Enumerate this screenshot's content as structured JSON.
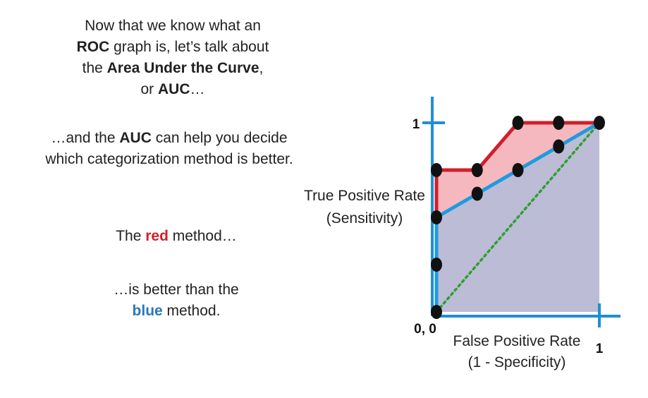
{
  "narration": {
    "para1_line1": "Now that we know what an",
    "para1_line2_bold": "ROC",
    "para1_line2_rest": " graph is, let’s talk about",
    "para1_line3_pre": "the ",
    "para1_line3_bold": "Area Under the Curve",
    "para1_line3_post": ",",
    "para1_line4_pre": "or ",
    "para1_line4_bold": "AUC",
    "para1_line4_post": "…",
    "para2_line1_pre": "…and the ",
    "para2_line1_bold": "AUC",
    "para2_line1_post": " can help you decide",
    "para2_line2": "which categorization method is better.",
    "para3_pre": "The ",
    "para3_red": "red",
    "para3_post": " method…",
    "para4_line1": "…is better than the",
    "para4_line2_blue": "blue",
    "para4_line2_post": " method."
  },
  "chart_data": {
    "type": "line",
    "xlabel_line1": "False Positive Rate",
    "xlabel_line2": "(1 - Specificity)",
    "ylabel_line1": "True Positive Rate",
    "ylabel_line2": "(Sensitivity)",
    "origin_label": "0, 0",
    "x_tick_label": "1",
    "y_tick_label": "1",
    "xlim": [
      0,
      1
    ],
    "ylim": [
      0,
      1
    ],
    "series": [
      {
        "key": "red",
        "color": "#d11f2b",
        "fill": "#f5b8bf",
        "x": [
          0,
          0,
          0,
          0.25,
          0.5,
          0.75,
          1
        ],
        "y": [
          0,
          0.5,
          0.75,
          0.75,
          1,
          1,
          1
        ]
      },
      {
        "key": "blue",
        "color": "#1e9be0",
        "fill": "#bcbcd6",
        "x": [
          0,
          0,
          0,
          0,
          0.25,
          0.5,
          0.75,
          1
        ],
        "y": [
          0,
          0.25,
          0.5,
          0.5,
          0.625,
          0.75,
          0.875,
          1
        ]
      }
    ],
    "points": [
      {
        "x": 0,
        "y": 0
      },
      {
        "x": 0,
        "y": 0.25
      },
      {
        "x": 0,
        "y": 0.5
      },
      {
        "x": 0,
        "y": 0.75
      },
      {
        "x": 0.25,
        "y": 0.75
      },
      {
        "x": 0.25,
        "y": 0.625
      },
      {
        "x": 0.5,
        "y": 0.75
      },
      {
        "x": 0.5,
        "y": 1
      },
      {
        "x": 0.75,
        "y": 0.875
      },
      {
        "x": 0.75,
        "y": 1
      },
      {
        "x": 1,
        "y": 1
      }
    ],
    "reference_line": {
      "x": [
        0,
        1
      ],
      "y": [
        0,
        1
      ],
      "color": "#2ea02e",
      "style": "dotted"
    },
    "axis_color": "#1e8fd6",
    "point_color": "#111111"
  }
}
